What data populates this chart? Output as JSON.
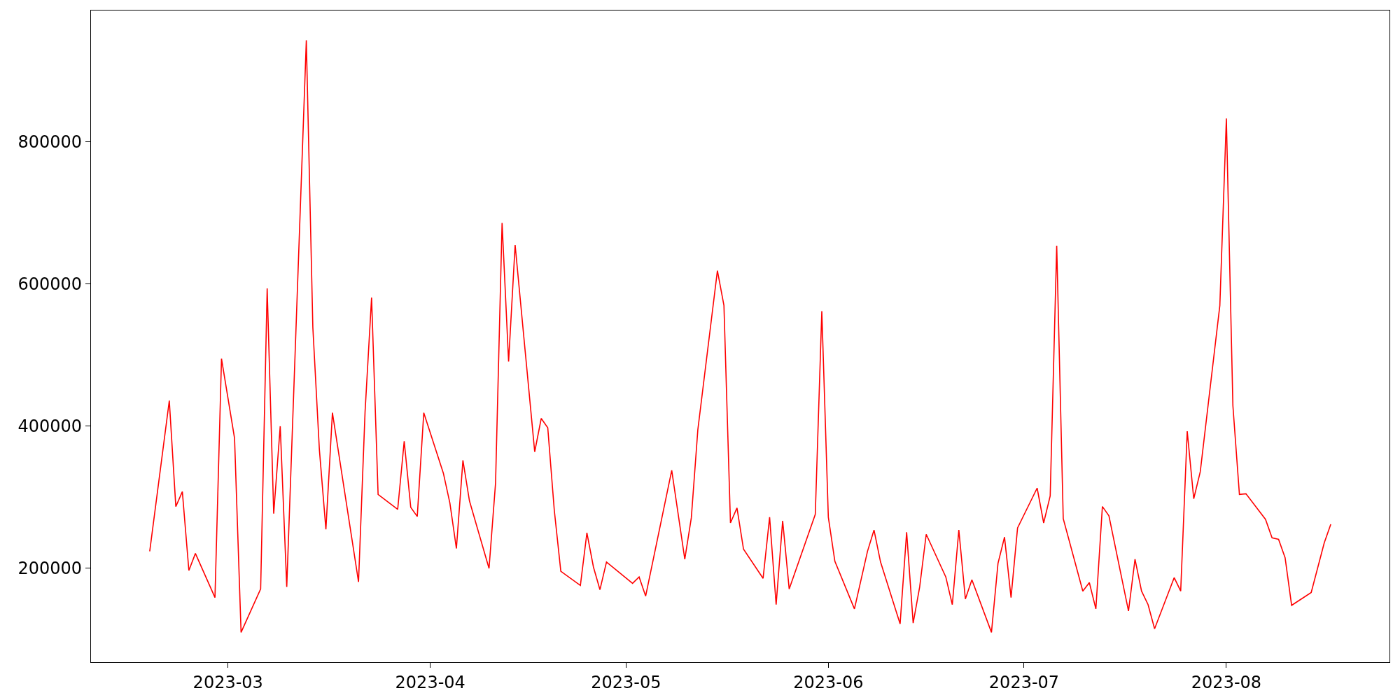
{
  "chart_data": {
    "type": "line",
    "x": [
      "2023-02-17",
      "2023-02-20",
      "2023-02-21",
      "2023-02-22",
      "2023-02-23",
      "2023-02-24",
      "2023-02-27",
      "2023-02-28",
      "2023-03-02",
      "2023-03-03",
      "2023-03-06",
      "2023-03-07",
      "2023-03-08",
      "2023-03-09",
      "2023-03-10",
      "2023-03-13",
      "2023-03-14",
      "2023-03-15",
      "2023-03-16",
      "2023-03-17",
      "2023-03-21",
      "2023-03-22",
      "2023-03-23",
      "2023-03-24",
      "2023-03-27",
      "2023-03-28",
      "2023-03-29",
      "2023-03-30",
      "2023-03-31",
      "2023-04-03",
      "2023-04-04",
      "2023-04-05",
      "2023-04-06",
      "2023-04-07",
      "2023-04-10",
      "2023-04-11",
      "2023-04-12",
      "2023-04-13",
      "2023-04-14",
      "2023-04-17",
      "2023-04-18",
      "2023-04-19",
      "2023-04-20",
      "2023-04-21",
      "2023-04-24",
      "2023-04-25",
      "2023-04-26",
      "2023-04-27",
      "2023-04-28",
      "2023-05-02",
      "2023-05-03",
      "2023-05-04",
      "2023-05-08",
      "2023-05-10",
      "2023-05-11",
      "2023-05-12",
      "2023-05-15",
      "2023-05-16",
      "2023-05-17",
      "2023-05-18",
      "2023-05-19",
      "2023-05-22",
      "2023-05-23",
      "2023-05-24",
      "2023-05-25",
      "2023-05-26",
      "2023-05-30",
      "2023-05-31",
      "2023-06-01",
      "2023-06-02",
      "2023-06-05",
      "2023-06-07",
      "2023-06-08",
      "2023-06-09",
      "2023-06-12",
      "2023-06-13",
      "2023-06-14",
      "2023-06-15",
      "2023-06-16",
      "2023-06-19",
      "2023-06-20",
      "2023-06-21",
      "2023-06-22",
      "2023-06-23",
      "2023-06-26",
      "2023-06-27",
      "2023-06-28",
      "2023-06-29",
      "2023-06-30",
      "2023-07-03",
      "2023-07-04",
      "2023-07-05",
      "2023-07-06",
      "2023-07-07",
      "2023-07-10",
      "2023-07-11",
      "2023-07-12",
      "2023-07-13",
      "2023-07-14",
      "2023-07-17",
      "2023-07-18",
      "2023-07-19",
      "2023-07-20",
      "2023-07-21",
      "2023-07-24",
      "2023-07-25",
      "2023-07-26",
      "2023-07-27",
      "2023-07-28",
      "2023-07-31",
      "2023-08-01",
      "2023-08-02",
      "2023-08-03",
      "2023-08-04",
      "2023-08-07",
      "2023-08-08",
      "2023-08-09",
      "2023-08-10",
      "2023-08-11",
      "2023-08-14",
      "2023-08-16",
      "2023-08-17"
    ],
    "series": [
      {
        "color": "#ff0000",
        "values": [
          224000,
          436000,
          287000,
          308000,
          197000,
          221000,
          159000,
          495000,
          383000,
          110000,
          171000,
          594000,
          277000,
          400000,
          174000,
          943000,
          539000,
          367000,
          255000,
          419000,
          181000,
          420000,
          581000,
          304000,
          283000,
          379000,
          286000,
          273000,
          419000,
          334000,
          292000,
          228000,
          352000,
          295000,
          200000,
          320000,
          686000,
          491000,
          655000,
          364000,
          411000,
          398000,
          282000,
          196000,
          176000,
          250000,
          202000,
          170000,
          209000,
          179000,
          188000,
          161000,
          338000,
          213000,
          271000,
          395000,
          619000,
          570000,
          264000,
          285000,
          227000,
          186000,
          272000,
          149000,
          267000,
          171000,
          276000,
          562000,
          272000,
          210000,
          143000,
          224000,
          254000,
          209000,
          122000,
          251000,
          123000,
          174000,
          248000,
          188000,
          149000,
          254000,
          157000,
          184000,
          110000,
          207000,
          244000,
          159000,
          257000,
          313000,
          264000,
          302000,
          654000,
          270000,
          168000,
          180000,
          143000,
          287000,
          274000,
          140000,
          213000,
          168000,
          149000,
          115000,
          187000,
          168000,
          393000,
          298000,
          336000,
          570000,
          833000,
          429000,
          304000,
          305000,
          269000,
          243000,
          241000,
          215000,
          148000,
          166000,
          236000,
          262000
        ]
      }
    ],
    "xlim": [
      "2023-02-08",
      "2023-08-26"
    ],
    "xticks": [
      {
        "value": "2023-03-01",
        "label": "2023-03"
      },
      {
        "value": "2023-04-01",
        "label": "2023-04"
      },
      {
        "value": "2023-05-01",
        "label": "2023-05"
      },
      {
        "value": "2023-06-01",
        "label": "2023-06"
      },
      {
        "value": "2023-07-01",
        "label": "2023-07"
      },
      {
        "value": "2023-08-01",
        "label": "2023-08"
      }
    ],
    "ylim": [
      68000,
      985000
    ],
    "yticks": [
      200000,
      400000,
      600000,
      800000
    ],
    "marker": "none",
    "line_style": "solid"
  }
}
